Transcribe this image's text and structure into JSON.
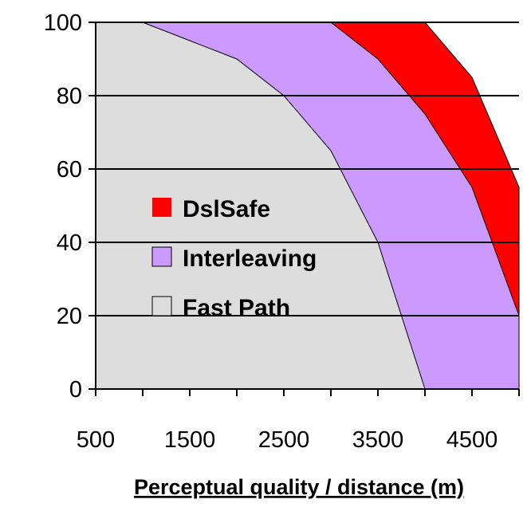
{
  "chart_data": {
    "type": "area",
    "xlabel": "Perceptual quality / distance (m)",
    "ylabel": "",
    "xlim": [
      500,
      5000
    ],
    "ylim": [
      0,
      100
    ],
    "x_ticks": [
      500,
      1000,
      1500,
      2000,
      2500,
      3000,
      3500,
      4000,
      4500,
      5000
    ],
    "x_tick_labels": [
      "500",
      "1500",
      "2500",
      "3500",
      "4500"
    ],
    "y_ticks": [
      0,
      20,
      40,
      60,
      80,
      100
    ],
    "y_tick_labels": [
      "0",
      "20",
      "40",
      "60",
      "80",
      "100"
    ],
    "grid": "horizontal",
    "legend_position": "center-left",
    "series": [
      {
        "name": "DslSafe",
        "color": "#ff0000",
        "boundary": [
          [
            3000,
            100
          ],
          [
            4000,
            100
          ],
          [
            4500,
            85
          ],
          [
            5000,
            55
          ],
          [
            5000,
            20
          ]
        ]
      },
      {
        "name": "Interleaving",
        "color": "#cc99ff",
        "boundary": [
          [
            1000,
            100
          ],
          [
            3000,
            100
          ],
          [
            3500,
            90
          ],
          [
            4000,
            75
          ],
          [
            4500,
            55
          ],
          [
            5000,
            20
          ],
          [
            5000,
            0
          ]
        ]
      },
      {
        "name": "Fast Path",
        "color": "#dddddd",
        "boundary": [
          [
            500,
            100
          ],
          [
            1000,
            100
          ],
          [
            1500,
            95
          ],
          [
            2000,
            90
          ],
          [
            2500,
            80
          ],
          [
            3000,
            65
          ],
          [
            3500,
            40
          ],
          [
            4000,
            0
          ]
        ]
      }
    ]
  }
}
